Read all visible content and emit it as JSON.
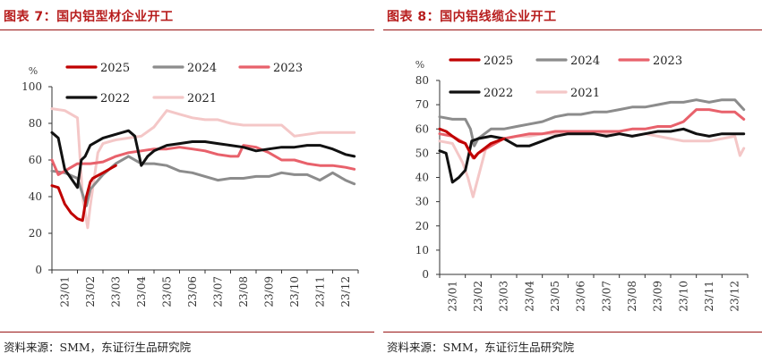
{
  "figures": [
    {
      "title": "图表 7：国内铝型材企业开工",
      "source": "资料来源：SMM，东证衍生品研究院"
    },
    {
      "title": "图表 8：国内铝线缆企业开工",
      "source": "资料来源：SMM，东证衍生品研究院"
    }
  ],
  "chart_data": [
    {
      "type": "line",
      "title": "国内铝型材企业开工",
      "ylabel": "%",
      "xlabel": "",
      "ylim": [
        0,
        100
      ],
      "yticks": [
        0,
        20,
        40,
        60,
        80,
        100
      ],
      "x_categories": [
        "23/01",
        "23/02",
        "23/03",
        "23/04",
        "23/05",
        "23/06",
        "23/07",
        "23/08",
        "23/09",
        "23/10",
        "23/11",
        "23/12"
      ],
      "grid": false,
      "legend": "top-left",
      "series": [
        {
          "name": "2025",
          "color": "#c00000",
          "x": [
            0,
            0.25,
            0.5,
            0.75,
            1.0,
            1.2,
            1.35,
            1.5,
            1.6,
            2.0,
            2.5
          ],
          "y": [
            46,
            45,
            36,
            31,
            28,
            27,
            40,
            48,
            50,
            53,
            57
          ]
        },
        {
          "name": "2024",
          "color": "#8c8c8c",
          "x": [
            0,
            0.5,
            1.0,
            1.35,
            1.5,
            2.0,
            2.5,
            3.0,
            3.5,
            4.0,
            4.5,
            5.0,
            5.5,
            6.0,
            6.5,
            7.0,
            7.5,
            8.0,
            8.5,
            9.0,
            9.5,
            10.0,
            10.5,
            11.0,
            11.5,
            11.85
          ],
          "y": [
            54,
            53,
            50,
            35,
            44,
            52,
            58,
            62,
            58,
            58,
            57,
            54,
            53,
            51,
            49,
            50,
            50,
            51,
            51,
            53,
            52,
            52,
            49,
            53,
            49,
            47
          ]
        },
        {
          "name": "2023",
          "color": "#e8616b",
          "x": [
            0,
            0.25,
            0.5,
            1.0,
            1.5,
            2.0,
            2.5,
            3.0,
            3.5,
            4.0,
            4.5,
            5.0,
            5.5,
            6.0,
            6.5,
            7.0,
            7.3,
            7.5,
            8.0,
            8.5,
            9.0,
            9.5,
            10.0,
            10.5,
            11.0,
            11.5,
            11.85
          ],
          "y": [
            60,
            52,
            54,
            58,
            58,
            59,
            62,
            64,
            65,
            66,
            66,
            67,
            66,
            65,
            63,
            62,
            62,
            68,
            67,
            64,
            60,
            60,
            58,
            57,
            57,
            56,
            55
          ]
        },
        {
          "name": "2022",
          "color": "#111111",
          "x": [
            0,
            0.25,
            0.5,
            0.75,
            1.0,
            1.15,
            1.3,
            1.5,
            2.0,
            2.5,
            3.0,
            3.25,
            3.5,
            3.75,
            4.0,
            4.5,
            5.0,
            5.5,
            6.0,
            6.5,
            7.0,
            7.5,
            8.0,
            8.5,
            9.0,
            9.5,
            10.0,
            10.5,
            11.0,
            11.5,
            11.85
          ],
          "y": [
            75,
            72,
            55,
            50,
            45,
            60,
            62,
            68,
            72,
            74,
            76,
            73,
            57,
            62,
            65,
            68,
            69,
            70,
            70,
            69,
            68,
            67,
            65,
            66,
            67,
            67,
            68,
            68,
            66,
            63,
            62
          ]
        },
        {
          "name": "2021",
          "color": "#f4c7c7",
          "x": [
            0,
            0.5,
            1.0,
            1.2,
            1.4,
            1.5,
            1.8,
            2.0,
            2.5,
            3.0,
            3.5,
            4.0,
            4.5,
            5.0,
            5.5,
            6.0,
            6.5,
            7.0,
            7.5,
            8.0,
            8.5,
            9.0,
            9.5,
            10.0,
            10.5,
            11.0,
            11.5,
            11.85
          ],
          "y": [
            88,
            87,
            83,
            40,
            23,
            35,
            64,
            69,
            71,
            72,
            73,
            78,
            87,
            85,
            83,
            82,
            82,
            80,
            79,
            79,
            79,
            79,
            73,
            74,
            75,
            75,
            75,
            75
          ]
        }
      ]
    },
    {
      "type": "line",
      "title": "国内铝线缆企业开工",
      "ylabel": "%",
      "xlabel": "",
      "ylim": [
        0,
        80
      ],
      "yticks": [
        0,
        10,
        20,
        30,
        40,
        50,
        60,
        70,
        80
      ],
      "x_categories": [
        "23/01",
        "23/02",
        "23/03",
        "23/04",
        "23/05",
        "23/06",
        "23/07",
        "23/08",
        "23/09",
        "23/10",
        "23/11",
        "23/12"
      ],
      "grid": false,
      "legend": "top-left",
      "series": [
        {
          "name": "2025",
          "color": "#c00000",
          "x": [
            0,
            0.25,
            0.5,
            0.75,
            1.0,
            1.2,
            1.35,
            1.5,
            1.75,
            2.0,
            2.5
          ],
          "y": [
            60,
            59,
            57,
            55,
            54,
            50,
            48,
            50,
            52,
            54,
            56
          ]
        },
        {
          "name": "2024",
          "color": "#8c8c8c",
          "x": [
            0,
            0.5,
            1.0,
            1.2,
            1.35,
            1.5,
            2.0,
            2.5,
            3.0,
            3.5,
            4.0,
            4.5,
            5.0,
            5.5,
            6.0,
            6.5,
            7.0,
            7.5,
            8.0,
            8.5,
            9.0,
            9.5,
            10.0,
            10.5,
            11.0,
            11.5,
            11.85
          ],
          "y": [
            65,
            64,
            64,
            60,
            53,
            56,
            60,
            60,
            61,
            62,
            63,
            65,
            66,
            66,
            67,
            67,
            68,
            69,
            69,
            70,
            71,
            71,
            72,
            71,
            72,
            72,
            68
          ]
        },
        {
          "name": "2023",
          "color": "#e8616b",
          "x": [
            0,
            0.5,
            1.0,
            1.3,
            1.5,
            2.0,
            2.5,
            3.0,
            3.5,
            4.0,
            4.5,
            5.0,
            5.5,
            6.0,
            6.5,
            7.0,
            7.5,
            8.0,
            8.5,
            9.0,
            9.5,
            10.0,
            10.5,
            11.0,
            11.5,
            11.85
          ],
          "y": [
            58,
            57,
            54,
            48,
            50,
            53,
            56,
            57,
            58,
            58,
            59,
            59,
            59,
            59,
            59,
            59,
            60,
            60,
            61,
            61,
            63,
            68,
            68,
            67,
            67,
            64
          ]
        },
        {
          "name": "2022",
          "color": "#111111",
          "x": [
            0,
            0.25,
            0.5,
            0.75,
            1.0,
            1.25,
            1.5,
            2.0,
            2.5,
            3.0,
            3.5,
            4.0,
            4.5,
            5.0,
            5.5,
            6.0,
            6.5,
            7.0,
            7.5,
            8.0,
            8.5,
            9.0,
            9.5,
            10.0,
            10.5,
            11.0,
            11.5,
            11.85
          ],
          "y": [
            51,
            50,
            38,
            40,
            43,
            55,
            56,
            57,
            56,
            53,
            53,
            55,
            57,
            58,
            58,
            58,
            57,
            58,
            57,
            58,
            59,
            59,
            60,
            58,
            57,
            58,
            58,
            58
          ]
        },
        {
          "name": "2021",
          "color": "#f4c7c7",
          "x": [
            0,
            0.5,
            0.9,
            1.1,
            1.3,
            1.5,
            1.8,
            2.0,
            2.5,
            3.0,
            3.5,
            4.0,
            4.5,
            5.0,
            5.5,
            6.0,
            6.5,
            7.0,
            7.5,
            8.0,
            8.5,
            9.0,
            9.5,
            10.0,
            10.5,
            11.0,
            11.5,
            11.7,
            11.85
          ],
          "y": [
            55,
            54,
            46,
            40,
            32,
            40,
            52,
            54,
            56,
            57,
            57,
            58,
            58,
            58,
            59,
            58,
            58,
            58,
            57,
            58,
            57,
            56,
            55,
            55,
            55,
            56,
            57,
            49,
            52
          ]
        }
      ]
    }
  ]
}
